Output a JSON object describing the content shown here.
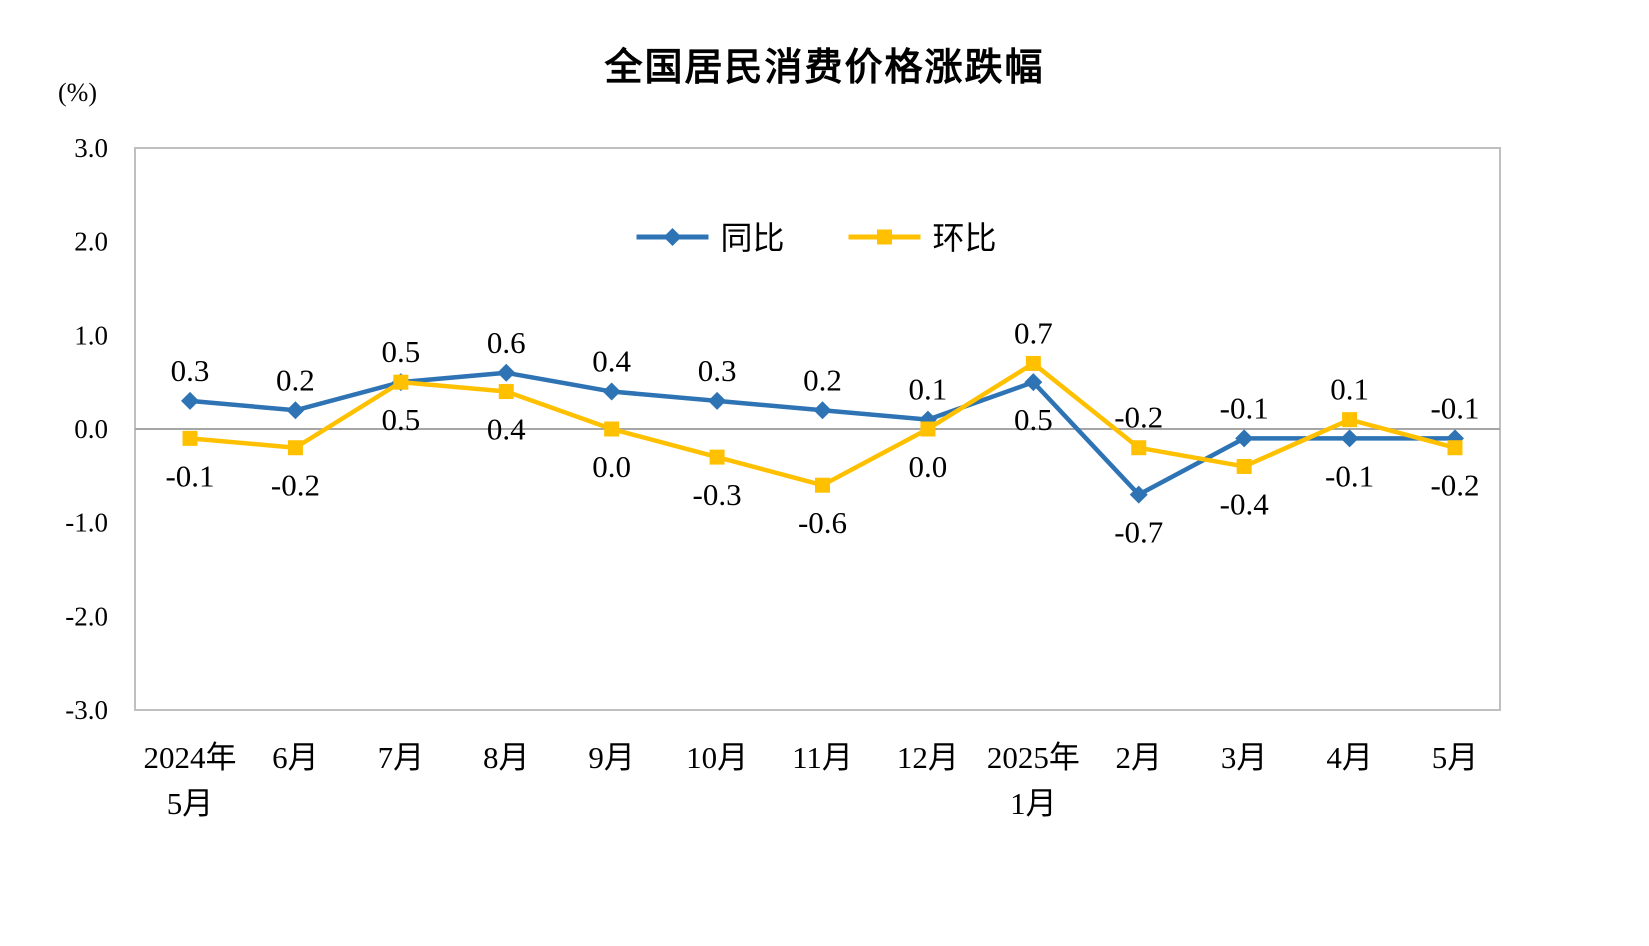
{
  "title": "全国居民消费价格涨跌幅",
  "y_axis_unit": "(%)",
  "chart_data": {
    "type": "line",
    "title": "全国居民消费价格涨跌幅",
    "categories": [
      "2024年5月",
      "6月",
      "7月",
      "8月",
      "9月",
      "10月",
      "11月",
      "12月",
      "2025年1月",
      "2月",
      "3月",
      "4月",
      "5月"
    ],
    "category_labels": [
      [
        "2024年",
        "5月"
      ],
      [
        "6月"
      ],
      [
        "7月"
      ],
      [
        "8月"
      ],
      [
        "9月"
      ],
      [
        "10月"
      ],
      [
        "11月"
      ],
      [
        "12月"
      ],
      [
        "2025年",
        "1月"
      ],
      [
        "2月"
      ],
      [
        "3月"
      ],
      [
        "4月"
      ],
      [
        "5月"
      ]
    ],
    "series": [
      {
        "name": "同比",
        "key": "yoy",
        "color": "#2E74B5",
        "marker": "diamond",
        "values": [
          0.3,
          0.2,
          0.5,
          0.6,
          0.4,
          0.3,
          0.2,
          0.1,
          0.5,
          -0.7,
          -0.1,
          -0.1,
          -0.1
        ],
        "labels": [
          "0.3",
          "0.2",
          "0.5",
          "0.6",
          "0.4",
          "0.3",
          "0.2",
          "0.1",
          "0.5",
          "-0.7",
          "-0.1",
          "-0.1",
          "-0.1"
        ]
      },
      {
        "name": "环比",
        "key": "mom",
        "color": "#FFC000",
        "marker": "square",
        "values": [
          -0.1,
          -0.2,
          0.5,
          0.4,
          0.0,
          -0.3,
          -0.6,
          0.0,
          0.7,
          -0.2,
          -0.4,
          0.1,
          -0.2
        ],
        "labels": [
          "-0.1",
          "-0.2",
          "0.5",
          "0.4",
          "0.0",
          "-0.3",
          "-0.6",
          "0.0",
          "0.7",
          "-0.2",
          "-0.4",
          "0.1",
          "-0.2"
        ]
      }
    ],
    "y_ticks": [
      3.0,
      2.0,
      1.0,
      0.0,
      -1.0,
      -2.0,
      -3.0
    ],
    "y_tick_labels": [
      "3.0",
      "2.0",
      "1.0",
      "0.0",
      "-1.0",
      "-2.0",
      "-3.0"
    ],
    "ylim": [
      -3.0,
      3.0
    ],
    "grid": false,
    "legend": {
      "position": "top-center-inside",
      "entries": [
        "同比",
        "环比"
      ]
    },
    "colors": {
      "yoy": "#2E74B5",
      "mom": "#FFC000",
      "zero_line": "#A6A6A6",
      "border": "#BFBFBF",
      "text": "#000000",
      "background": "#FFFFFF"
    }
  }
}
